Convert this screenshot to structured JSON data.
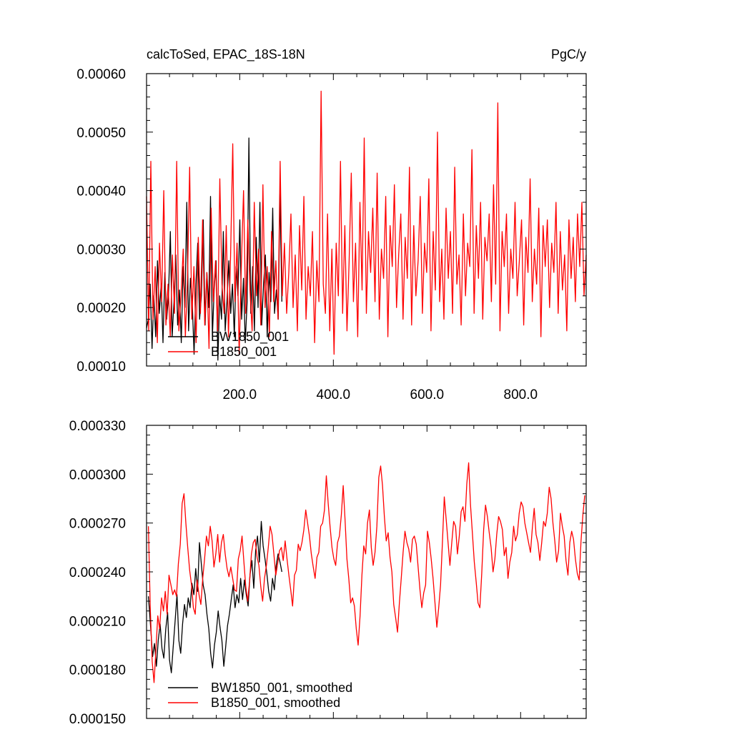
{
  "chart_data": [
    {
      "type": "line",
      "title": "calcToSed, EPAC_18S-18N",
      "units_label": "PgC/y",
      "xlim": [
        1,
        940
      ],
      "ylim": [
        0.0001,
        0.0006
      ],
      "x_ticks": [
        200,
        400,
        600,
        800
      ],
      "x_tick_labels": [
        "200.0",
        "400.0",
        "600.0",
        "800.0"
      ],
      "y_ticks": [
        0.0001,
        0.0002,
        0.0003,
        0.0004,
        0.0005,
        0.0006
      ],
      "y_tick_labels": [
        "0.00010",
        "0.00020",
        "0.00030",
        "0.00040",
        "0.00050",
        "0.00060"
      ],
      "grid": false,
      "legend_placement": "bottom-left",
      "series": [
        {
          "name": "BW1850_001",
          "color": "#000000",
          "x_start": 1,
          "x_end": 290,
          "values": [
            0.000165,
            0.00018,
            0.00024,
            0.00013,
            0.00022,
            0.00015,
            0.00028,
            0.00019,
            0.00024,
            0.00014,
            0.00026,
            0.00018,
            0.00022,
            0.00033,
            0.00015,
            0.00021,
            0.00029,
            0.00017,
            0.00023,
            0.00014,
            0.00027,
            0.0002,
            0.00038,
            0.00016,
            0.00025,
            0.00021,
            0.00012,
            0.00024,
            0.00031,
            0.00018,
            0.00022,
            0.00035,
            0.00017,
            0.00026,
            0.0002,
            0.00039,
            0.00015,
            0.00023,
            0.00028,
            0.00011,
            0.00022,
            0.00018,
            0.00033,
            0.00016,
            0.00021,
            0.00028,
            0.00019,
            0.00024,
            0.00015,
            0.00027,
            0.00022,
            0.00035,
            0.00018,
            0.00025,
            0.00014,
            0.00021,
            0.00049,
            0.00019,
            0.00027,
            0.00016,
            0.00032,
            0.0002,
            0.00038,
            0.00017,
            0.00024,
            0.00029,
            0.00015,
            0.00026,
            0.00021,
            0.00037,
            0.00019,
            0.00023,
            0.00018,
            0.0004,
            0.00021
          ]
        },
        {
          "name": "B1850_001",
          "color": "#ff0000",
          "x_start": 1,
          "x_end": 940,
          "values": [
            0.00039,
            0.00016,
            0.00045,
            0.00018,
            0.00027,
            0.00014,
            0.00031,
            0.00021,
            0.0004,
            0.00017,
            0.00024,
            0.00015,
            0.00029,
            0.00019,
            0.00045,
            0.00016,
            0.00022,
            0.0003,
            0.00015,
            0.00025,
            0.00044,
            0.00018,
            0.00027,
            0.00014,
            0.00032,
            0.00019,
            0.00035,
            0.00017,
            0.00026,
            0.00013,
            0.00037,
            0.00021,
            0.00028,
            0.00016,
            0.00042,
            0.00024,
            0.00019,
            0.00034,
            0.00015,
            0.00029,
            0.00048,
            0.00021,
            0.00031,
            0.00012,
            0.00027,
            0.0004,
            0.00019,
            0.00035,
            0.00023,
            0.00016,
            0.00038,
            0.00022,
            0.0003,
            0.00017,
            0.00041,
            0.0002,
            0.00027,
            0.00015,
            0.00033,
            0.00021,
            0.00028,
            0.00018,
            0.00045,
            0.00022,
            0.00031,
            0.00019,
            0.00026,
            0.00036,
            0.0002,
            0.00029,
            0.00016,
            0.00034,
            0.00023,
            0.00039,
            0.00018,
            0.00027,
            0.00022,
            0.00033,
            0.00014,
            0.00028,
            0.00021,
            0.00057,
            0.00024,
            0.00019,
            0.00036,
            0.00016,
            0.0003,
            0.00012,
            0.00031,
            0.00022,
            0.00045,
            0.00019,
            0.00034,
            0.00016,
            0.00028,
            0.00043,
            0.00021,
            0.00031,
            0.00015,
            0.00038,
            0.00023,
            0.00049,
            0.00019,
            0.00033,
            0.00026,
            0.00037,
            0.00021,
            0.00043,
            0.00018,
            0.0003,
            0.00025,
            0.00039,
            0.00015,
            0.00034,
            0.00027,
            0.00041,
            0.0002,
            0.00029,
            0.00036,
            0.00018,
            0.00032,
            0.00025,
            0.00044,
            0.00017,
            0.00034,
            0.00022,
            0.00028,
            0.00039,
            0.00019,
            0.00031,
            0.00026,
            0.00042,
            0.00016,
            0.00033,
            0.00023,
            0.0005,
            0.00021,
            0.0003,
            0.00018,
            0.00037,
            0.00025,
            0.00033,
            0.00019,
            0.00044,
            0.00024,
            0.00029,
            0.00017,
            0.00036,
            0.00022,
            0.00031,
            0.00027,
            0.00047,
            0.00019,
            0.00034,
            0.00025,
            0.00038,
            0.00018,
            0.00032,
            0.00028,
            0.00036,
            0.00021,
            0.00041,
            0.00024,
            0.00055,
            0.00016,
            0.00033,
            0.00027,
            0.00036,
            0.00019,
            0.0003,
            0.00025,
            0.00038,
            0.00022,
            0.00028,
            0.00035,
            0.00017,
            0.00032,
            0.00026,
            0.00042,
            0.00021,
            0.0003,
            0.00024,
            0.00037,
            0.00015,
            0.00034,
            0.00027,
            0.00035,
            0.0002,
            0.00031,
            0.00026,
            0.00038,
            0.00019,
            0.00033,
            0.00023,
            0.00029,
            0.00016,
            0.00035,
            0.00025,
            0.00032,
            0.00021,
            0.00036,
            0.00027,
            0.00038,
            0.00022,
            0.00029
          ]
        }
      ]
    },
    {
      "type": "line",
      "xlim": [
        1,
        940
      ],
      "ylim": [
        0.00015,
        0.00033
      ],
      "x_ticks": [
        200,
        400,
        600,
        800
      ],
      "y_ticks": [
        0.00015,
        0.00018,
        0.00021,
        0.00024,
        0.00027,
        0.0003,
        0.00033
      ],
      "y_tick_labels": [
        "0.000150",
        "0.000180",
        "0.000210",
        "0.000240",
        "0.000270",
        "0.000300",
        "0.000330"
      ],
      "grid": false,
      "legend_placement": "bottom-left",
      "series": [
        {
          "name": "BW1850_001, smoothed",
          "color": "#000000",
          "x": [
            5,
            10,
            14,
            18,
            22,
            26,
            30,
            34,
            38,
            42,
            46,
            50,
            54,
            58,
            62,
            66,
            70,
            74,
            78,
            82,
            86,
            90,
            94,
            98,
            102,
            106,
            110,
            114,
            118,
            122,
            126,
            130,
            134,
            138,
            142,
            146,
            150,
            154,
            158,
            162,
            166,
            170,
            174,
            178,
            182,
            186,
            190,
            194,
            198,
            202,
            206,
            210,
            214,
            218,
            222,
            226,
            230,
            234,
            238,
            242,
            246,
            250,
            254,
            258,
            262,
            266,
            270,
            274,
            278,
            282,
            286,
            290
          ],
          "y": [
            0.000225,
            0.000205,
            0.000188,
            0.000196,
            0.000182,
            0.000198,
            0.000208,
            0.000193,
            0.000187,
            0.000205,
            0.000215,
            0.000186,
            0.000178,
            0.000194,
            0.00021,
            0.000226,
            0.000198,
            0.00019,
            0.000208,
            0.00022,
            0.000212,
            0.000224,
            0.000218,
            0.000233,
            0.000226,
            0.000242,
            0.000228,
            0.000258,
            0.000245,
            0.000232,
            0.000226,
            0.000214,
            0.000205,
            0.00019,
            0.000181,
            0.000195,
            0.000203,
            0.000216,
            0.000206,
            0.000198,
            0.000182,
            0.000194,
            0.000207,
            0.000214,
            0.000223,
            0.000232,
            0.000218,
            0.000226,
            0.000221,
            0.000236,
            0.000223,
            0.000235,
            0.000226,
            0.000219,
            0.000238,
            0.000247,
            0.00023,
            0.000253,
            0.000262,
            0.000246,
            0.000271,
            0.000256,
            0.000248,
            0.000239,
            0.000228,
            0.000222,
            0.000236,
            0.000229,
            0.000244,
            0.000251,
            0.000246,
            0.00024
          ]
        },
        {
          "name": "B1850_001, smoothed",
          "color": "#ff0000",
          "x": [
            5,
            9,
            13,
            17,
            21,
            25,
            29,
            33,
            37,
            41,
            45,
            49,
            53,
            57,
            61,
            65,
            69,
            73,
            77,
            81,
            85,
            89,
            93,
            97,
            101,
            105,
            109,
            113,
            117,
            121,
            125,
            129,
            133,
            137,
            141,
            145,
            149,
            153,
            157,
            161,
            165,
            169,
            173,
            177,
            181,
            185,
            189,
            193,
            197,
            201,
            205,
            209,
            213,
            217,
            221,
            225,
            229,
            233,
            237,
            241,
            245,
            249,
            253,
            257,
            261,
            265,
            269,
            273,
            277,
            281,
            285,
            289,
            293,
            297,
            301,
            305,
            309,
            313,
            317,
            321,
            325,
            329,
            333,
            337,
            341,
            345,
            349,
            353,
            357,
            361,
            365,
            369,
            373,
            377,
            381,
            385,
            389,
            393,
            397,
            401,
            405,
            409,
            413,
            417,
            421,
            425,
            429,
            433,
            437,
            441,
            445,
            449,
            453,
            457,
            461,
            465,
            469,
            473,
            477,
            481,
            485,
            489,
            493,
            497,
            501,
            505,
            509,
            513,
            517,
            521,
            525,
            529,
            533,
            537,
            541,
            545,
            549,
            553,
            557,
            561,
            565,
            569,
            573,
            577,
            581,
            585,
            589,
            593,
            597,
            601,
            605,
            609,
            613,
            617,
            621,
            625,
            629,
            633,
            637,
            641,
            645,
            649,
            653,
            657,
            661,
            665,
            669,
            673,
            677,
            681,
            685,
            689,
            693,
            697,
            701,
            705,
            709,
            713,
            717,
            721,
            725,
            729,
            733,
            737,
            741,
            745,
            749,
            753,
            757,
            761,
            765,
            769,
            773,
            777,
            781,
            785,
            789,
            793,
            797,
            801,
            805,
            809,
            813,
            817,
            821,
            825,
            829,
            833,
            837,
            841,
            845,
            849,
            853,
            857,
            861,
            865,
            869,
            873,
            877,
            881,
            885,
            889,
            893,
            897,
            901,
            905,
            909,
            913,
            917,
            921,
            925,
            929,
            933,
            937
          ],
          "y": [
            0.000268,
            0.000218,
            0.000185,
            0.000172,
            0.000192,
            0.000213,
            0.000205,
            0.000224,
            0.000216,
            0.000228,
            0.000214,
            0.000238,
            0.000232,
            0.000226,
            0.000229,
            0.000225,
            0.000245,
            0.000257,
            0.000282,
            0.000288,
            0.00027,
            0.000255,
            0.000241,
            0.000232,
            0.000218,
            0.000214,
            0.000235,
            0.000226,
            0.00022,
            0.000236,
            0.000248,
            0.000262,
            0.000256,
            0.000268,
            0.000259,
            0.000243,
            0.000251,
            0.000263,
            0.000246,
            0.000258,
            0.000263,
            0.000251,
            0.000242,
            0.000237,
            0.000243,
            0.000236,
            0.000229,
            0.000228,
            0.000248,
            0.000253,
            0.000262,
            0.000246,
            0.000231,
            0.000222,
            0.000234,
            0.000251,
            0.000258,
            0.00026,
            0.000249,
            0.000244,
            0.000231,
            0.000222,
            0.000236,
            0.000244,
            0.000255,
            0.000268,
            0.000263,
            0.000251,
            0.000238,
            0.000245,
            0.000253,
            0.000255,
            0.000247,
            0.000259,
            0.000248,
            0.000238,
            0.000229,
            0.000219,
            0.000238,
            0.000241,
            0.000257,
            0.000253,
            0.000258,
            0.000266,
            0.000278,
            0.00027,
            0.000262,
            0.000251,
            0.000243,
            0.000236,
            0.000249,
            0.000252,
            0.000268,
            0.00027,
            0.000278,
            0.000299,
            0.000282,
            0.000268,
            0.000255,
            0.000248,
            0.000244,
            0.000258,
            0.000262,
            0.000275,
            0.000293,
            0.000272,
            0.000248,
            0.000236,
            0.000221,
            0.000224,
            0.000219,
            0.000205,
            0.000195,
            0.000213,
            0.000238,
            0.000256,
            0.000251,
            0.00027,
            0.000278,
            0.000255,
            0.000244,
            0.000252,
            0.000268,
            0.000298,
            0.000305,
            0.000293,
            0.000274,
            0.000259,
            0.000264,
            0.000249,
            0.00024,
            0.00022,
            0.000212,
            0.000203,
            0.000221,
            0.000236,
            0.000252,
            0.000265,
            0.000258,
            0.000254,
            0.000246,
            0.00026,
            0.000262,
            0.000257,
            0.000243,
            0.000229,
            0.000218,
            0.000227,
            0.000232,
            0.000265,
            0.000258,
            0.000248,
            0.000236,
            0.000221,
            0.000206,
            0.000218,
            0.000232,
            0.000258,
            0.000286,
            0.000272,
            0.000258,
            0.000244,
            0.000258,
            0.000271,
            0.000268,
            0.000251,
            0.000262,
            0.000277,
            0.00028,
            0.000271,
            0.000294,
            0.000307,
            0.000281,
            0.000264,
            0.000246,
            0.000234,
            0.000221,
            0.000218,
            0.000239,
            0.000266,
            0.000281,
            0.000274,
            0.000264,
            0.000255,
            0.00024,
            0.000248,
            0.000263,
            0.000274,
            0.000271,
            0.000266,
            0.00025,
            0.000255,
            0.000236,
            0.000246,
            0.000252,
            0.000268,
            0.000259,
            0.000263,
            0.000276,
            0.000283,
            0.00028,
            0.00027,
            0.000264,
            0.000258,
            0.000252,
            0.000267,
            0.000279,
            0.000263,
            0.000258,
            0.000247,
            0.000258,
            0.000271,
            0.000268,
            0.000276,
            0.000292,
            0.000285,
            0.00027,
            0.000259,
            0.000246,
            0.000253,
            0.000276,
            0.000268,
            0.000262,
            0.000247,
            0.000238,
            0.000258,
            0.000265,
            0.00026,
            0.000248,
            0.000239,
            0.000235,
            0.000259,
            0.000275,
            0.000287
          ]
        }
      ]
    }
  ]
}
